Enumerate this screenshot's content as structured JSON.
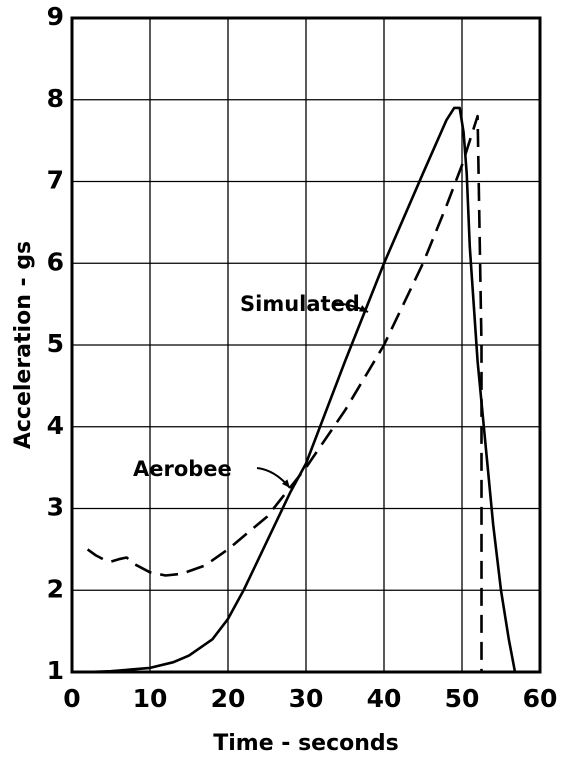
{
  "chart_data": {
    "type": "line",
    "xlabel": "Time - seconds",
    "ylabel": "Acceleration - gs",
    "xlim": [
      0,
      60
    ],
    "ylim": [
      1,
      9
    ],
    "xticks": [
      0,
      10,
      20,
      30,
      40,
      50,
      60
    ],
    "yticks": [
      1,
      2,
      3,
      4,
      5,
      6,
      7,
      8,
      9
    ],
    "grid": true,
    "series": [
      {
        "name": "Simulated",
        "color": "#000000",
        "line_style": "solid",
        "x": [
          2,
          5,
          10,
          13,
          15,
          18,
          20,
          22,
          25,
          28,
          30,
          35,
          40,
          45,
          48,
          49,
          49.7,
          50.2,
          50.6,
          51,
          52,
          53,
          54,
          55,
          56,
          56.8
        ],
        "values": [
          1,
          1.01,
          1.05,
          1.12,
          1.2,
          1.4,
          1.65,
          2.0,
          2.6,
          3.2,
          3.55,
          4.8,
          6.0,
          7.1,
          7.75,
          7.9,
          7.9,
          7.6,
          7.1,
          6.2,
          4.8,
          3.8,
          2.8,
          2.0,
          1.4,
          1.0
        ]
      },
      {
        "name": "Aerobee",
        "color": "#000000",
        "line_style": "dashed",
        "x": [
          2,
          3,
          4,
          5,
          6,
          7,
          8,
          10,
          12,
          14,
          17,
          20,
          25,
          30,
          35,
          40,
          45,
          48,
          50,
          51,
          52,
          52.5,
          52.5
        ],
        "values": [
          2.5,
          2.43,
          2.38,
          2.35,
          2.38,
          2.4,
          2.32,
          2.22,
          2.18,
          2.2,
          2.3,
          2.5,
          2.9,
          3.5,
          4.2,
          5.0,
          6.0,
          6.7,
          7.2,
          7.5,
          7.8,
          5.0,
          1.0
        ]
      }
    ]
  }
}
